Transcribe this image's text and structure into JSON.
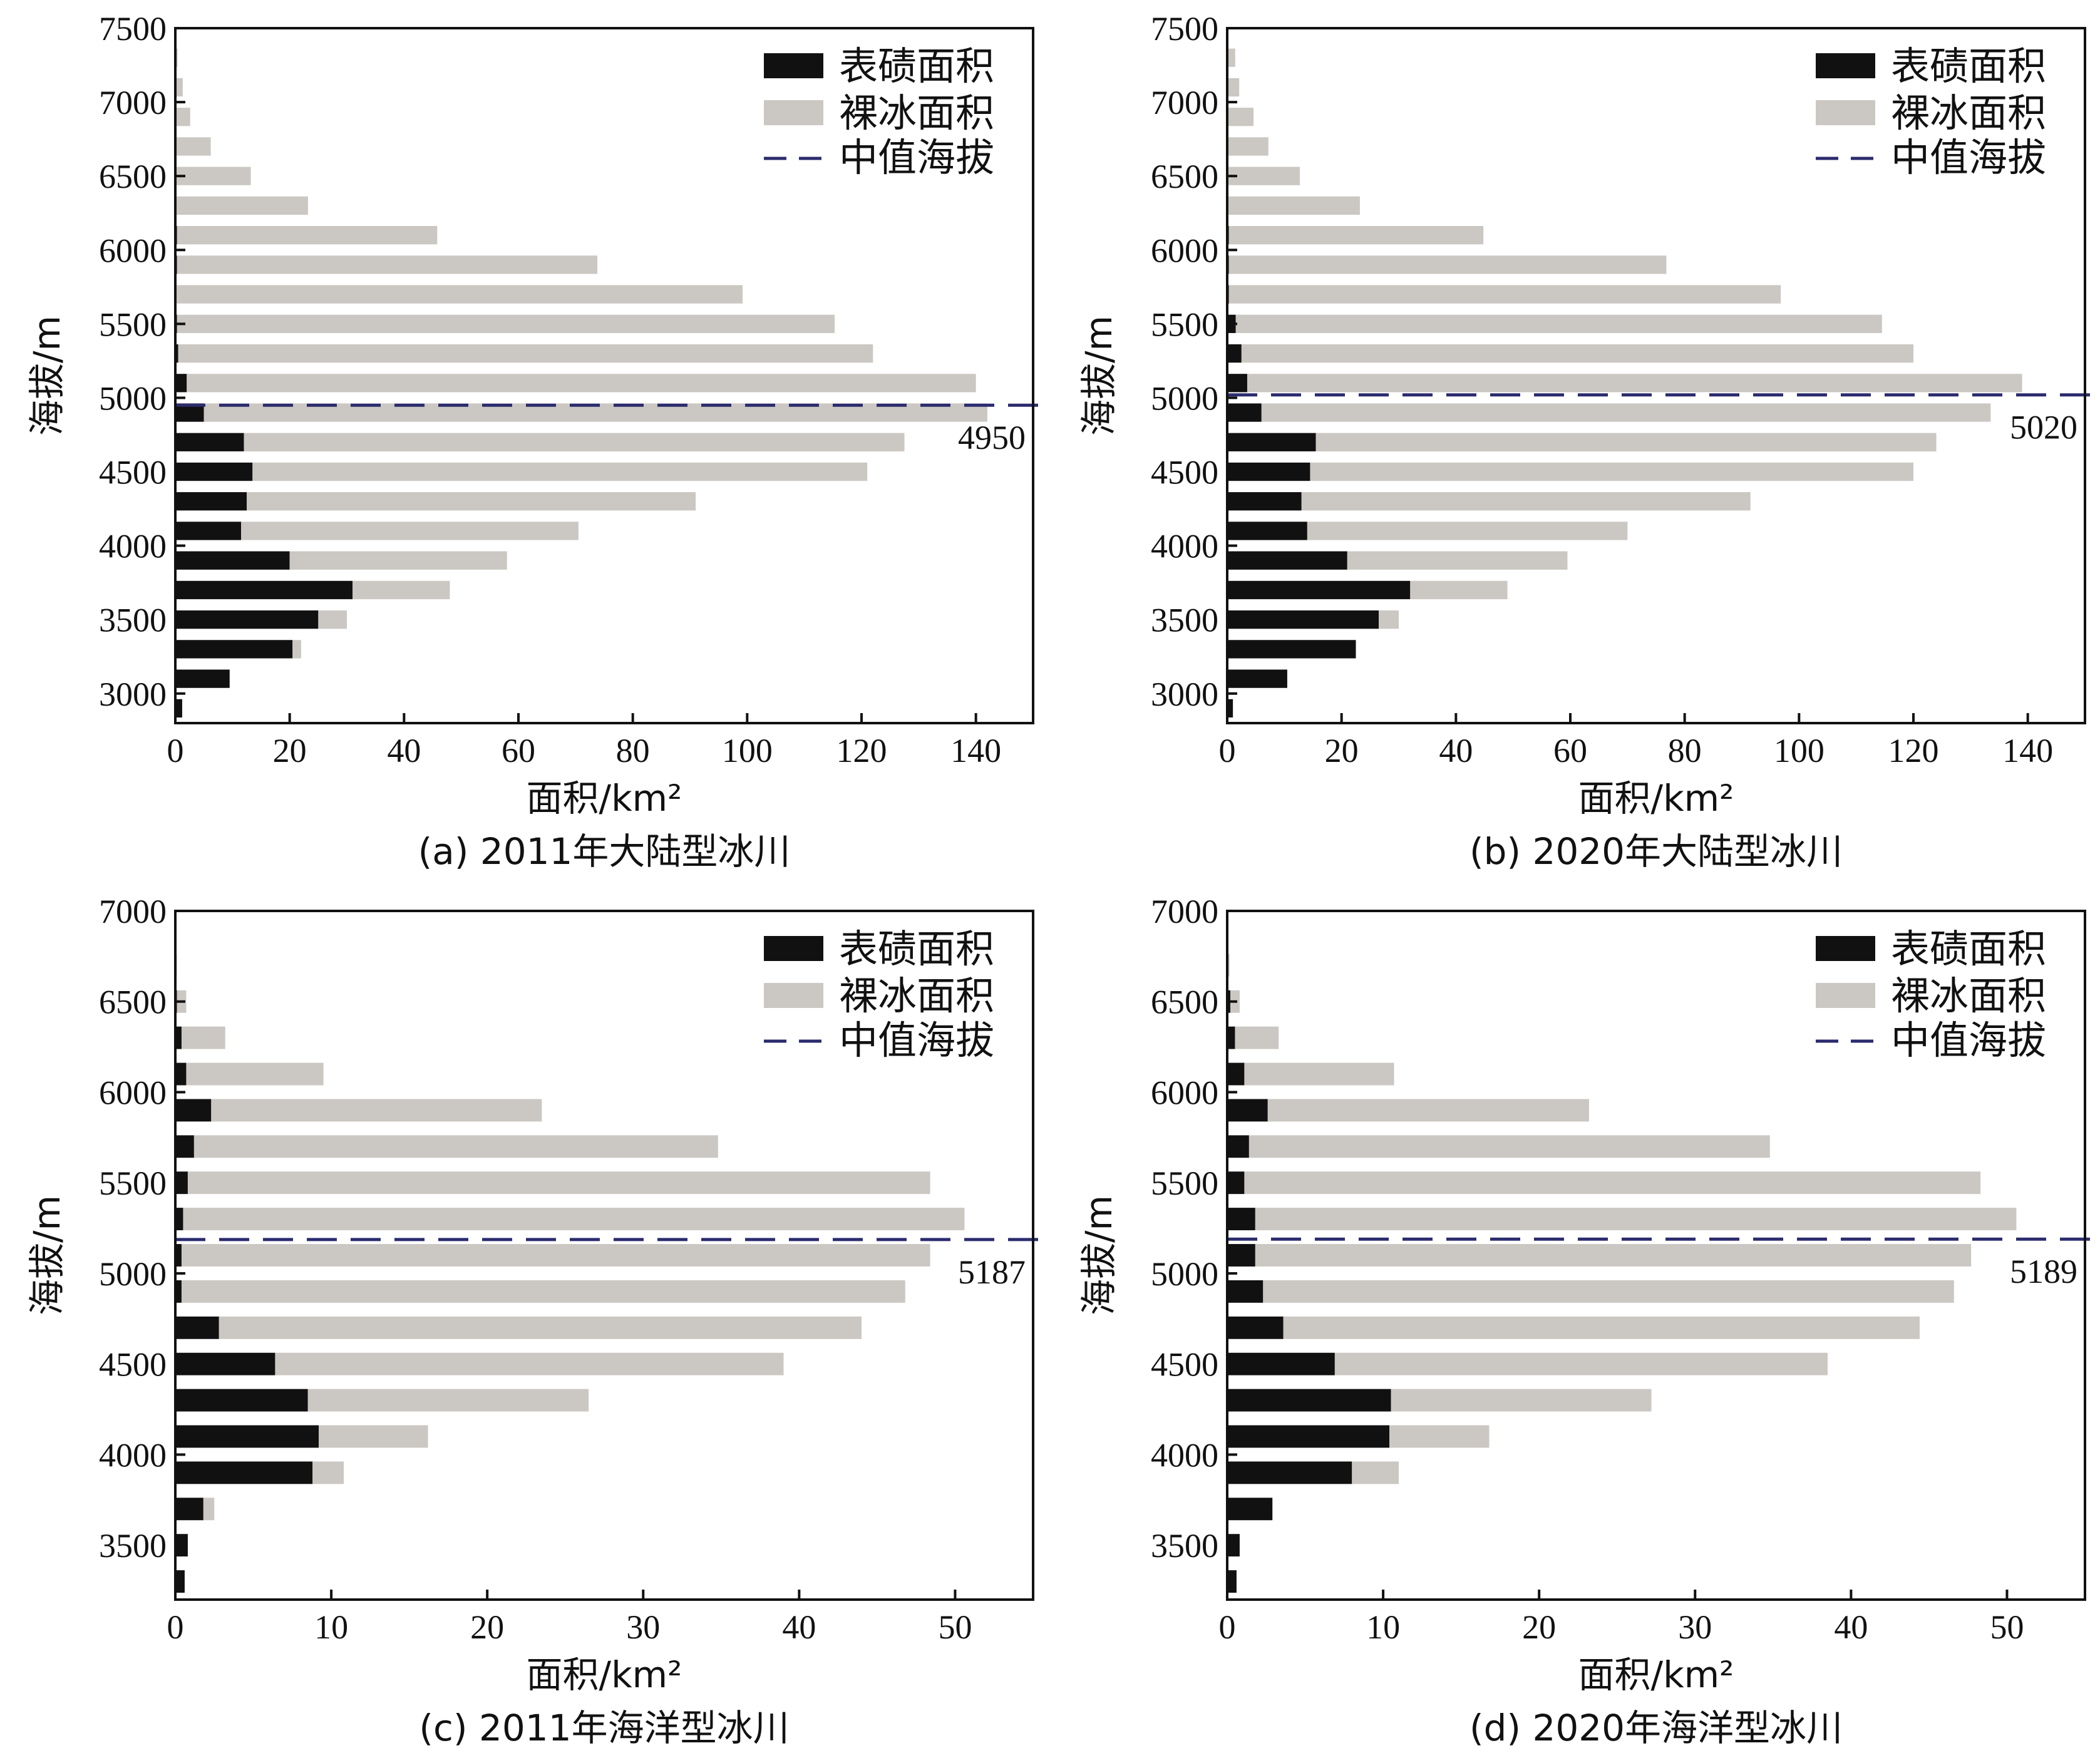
{
  "colors": {
    "debris": "#111111",
    "bare": "#cbc7c2",
    "median": "#2b2b6e",
    "axis": "#111111"
  },
  "chart_data": [
    {
      "type": "bar",
      "orientation": "horizontal",
      "stacked": true,
      "caption": "(a) 2011年大陆型冰川",
      "xlabel": "面积/km²",
      "ylabel": "海拔/m",
      "xlim": [
        0,
        150
      ],
      "ylim": [
        2800,
        7500
      ],
      "xticks": [
        0,
        20,
        40,
        60,
        80,
        100,
        120,
        140
      ],
      "yticks": [
        3000,
        3500,
        4000,
        4500,
        5000,
        5500,
        6000,
        6500,
        7000,
        7500
      ],
      "bin_height": 200,
      "elevations": [
        2900,
        3100,
        3300,
        3500,
        3700,
        3900,
        4100,
        4300,
        4500,
        4700,
        4900,
        5100,
        5300,
        5500,
        5700,
        5900,
        6100,
        6300,
        6500,
        6700,
        6900,
        7100,
        7300
      ],
      "series": [
        {
          "name": "表碛面积",
          "values": [
            1.2,
            9.5,
            20.5,
            25,
            31,
            20,
            11.5,
            12.5,
            13.5,
            12,
            5,
            2,
            0.5,
            0.3,
            0.2,
            0.3,
            0.3,
            0.2,
            0.2,
            0.2,
            0.1,
            0.1,
            0
          ]
        },
        {
          "name": "裸冰面积",
          "values": [
            0,
            0,
            1.5,
            5,
            17,
            38,
            59,
            78.5,
            107.5,
            115.5,
            137,
            138,
            121.5,
            115,
            99,
            73.5,
            45.5,
            23,
            13,
            6,
            2.5,
            1.2,
            0.4
          ]
        }
      ],
      "legend": [
        "表碛面积",
        "裸冰面积",
        "中值海拔"
      ],
      "legend_position": "top-right",
      "median_elevation": 4950,
      "median_label": "4950"
    },
    {
      "type": "bar",
      "orientation": "horizontal",
      "stacked": true,
      "caption": "(b) 2020年大陆型冰川",
      "xlabel": "面积/km²",
      "ylabel": "海拔/m",
      "xlim": [
        0,
        150
      ],
      "ylim": [
        2800,
        7500
      ],
      "xticks": [
        0,
        20,
        40,
        60,
        80,
        100,
        120,
        140
      ],
      "yticks": [
        3000,
        3500,
        4000,
        4500,
        5000,
        5500,
        6000,
        6500,
        7000,
        7500
      ],
      "bin_height": 200,
      "elevations": [
        2900,
        3100,
        3300,
        3500,
        3700,
        3900,
        4100,
        4300,
        4500,
        4700,
        4900,
        5100,
        5300,
        5500,
        5700,
        5900,
        6100,
        6300,
        6500,
        6700,
        6900,
        7100,
        7300
      ],
      "series": [
        {
          "name": "表碛面积",
          "values": [
            1,
            10.5,
            22.5,
            26.5,
            32,
            21,
            14,
            13,
            14.5,
            15.5,
            6,
            3.5,
            2.5,
            1.5,
            0.3,
            0.3,
            0.3,
            0.2,
            0.2,
            0.2,
            0.1,
            0.1,
            0.1
          ]
        },
        {
          "name": "裸冰面积",
          "values": [
            0,
            0,
            0,
            3.5,
            17,
            38.5,
            56,
            78.5,
            105.5,
            108.5,
            127.5,
            135.5,
            117.5,
            113,
            96.5,
            76.5,
            44.5,
            23,
            12.5,
            7,
            4.5,
            2,
            1.3
          ]
        }
      ],
      "legend": [
        "表碛面积",
        "裸冰面积",
        "中值海拔"
      ],
      "legend_position": "top-right",
      "median_elevation": 5020,
      "median_label": "5020"
    },
    {
      "type": "bar",
      "orientation": "horizontal",
      "stacked": true,
      "caption": "(c) 2011年海洋型冰川",
      "xlabel": "面积/km²",
      "ylabel": "海拔/m",
      "xlim": [
        0,
        55
      ],
      "ylim": [
        3200,
        7000
      ],
      "xticks": [
        0,
        10,
        20,
        30,
        40,
        50
      ],
      "yticks": [
        3500,
        4000,
        4500,
        5000,
        5500,
        6000,
        6500,
        7000
      ],
      "bin_height": 200,
      "elevations": [
        3300,
        3500,
        3700,
        3900,
        4100,
        4300,
        4500,
        4700,
        4900,
        5100,
        5300,
        5500,
        5700,
        5900,
        6100,
        6300,
        6500,
        6700
      ],
      "series": [
        {
          "name": "表碛面积",
          "values": [
            0.6,
            0.8,
            1.8,
            8.8,
            9.2,
            8.5,
            6.4,
            2.8,
            0.4,
            0.4,
            0.5,
            0.8,
            1.2,
            2.3,
            0.7,
            0.4,
            0.1,
            0.05
          ]
        },
        {
          "name": "裸冰面积",
          "values": [
            0,
            0,
            0.7,
            2,
            7,
            18,
            32.6,
            41.2,
            46.4,
            48,
            50.1,
            47.6,
            33.6,
            21.2,
            8.8,
            2.8,
            0.6,
            0.05
          ]
        }
      ],
      "legend": [
        "表碛面积",
        "裸冰面积",
        "中值海拔"
      ],
      "legend_position": "top-right",
      "median_elevation": 5187,
      "median_label": "5187"
    },
    {
      "type": "bar",
      "orientation": "horizontal",
      "stacked": true,
      "caption": "(d) 2020年海洋型冰川",
      "xlabel": "面积/km²",
      "ylabel": "海拔/m",
      "xlim": [
        0,
        55
      ],
      "ylim": [
        3200,
        7000
      ],
      "xticks": [
        0,
        10,
        20,
        30,
        40,
        50
      ],
      "yticks": [
        3500,
        4000,
        4500,
        5000,
        5500,
        6000,
        6500,
        7000
      ],
      "bin_height": 200,
      "elevations": [
        3300,
        3500,
        3700,
        3900,
        4100,
        4300,
        4500,
        4700,
        4900,
        5100,
        5300,
        5500,
        5700,
        5900,
        6100,
        6300,
        6500,
        6700
      ],
      "series": [
        {
          "name": "表碛面积",
          "values": [
            0.6,
            0.8,
            2.9,
            8,
            10.4,
            10.5,
            6.9,
            3.6,
            2.3,
            1.8,
            1.8,
            1.1,
            1.4,
            2.6,
            1.1,
            0.5,
            0.2,
            0.05
          ]
        },
        {
          "name": "裸冰面积",
          "values": [
            0,
            0,
            0,
            3,
            6.4,
            16.7,
            31.6,
            40.8,
            44.3,
            45.9,
            48.8,
            47.2,
            33.4,
            20.6,
            9.6,
            2.8,
            0.6,
            0.1
          ]
        }
      ],
      "legend": [
        "表碛面积",
        "裸冰面积",
        "中值海拔"
      ],
      "legend_position": "top-right",
      "median_elevation": 5189,
      "median_label": "5189"
    }
  ]
}
